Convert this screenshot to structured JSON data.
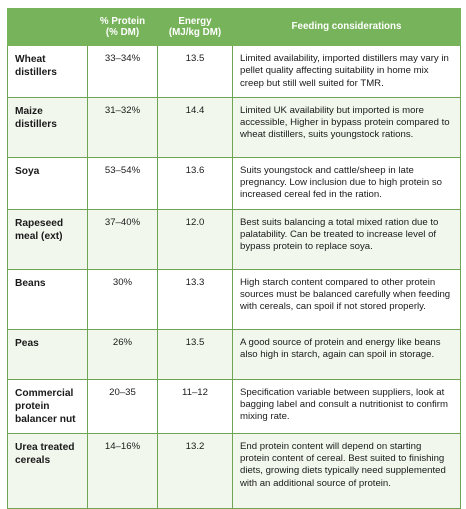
{
  "table": {
    "header": [
      "",
      "% Protein (% DM)",
      "Energy (MJ/kg DM)",
      "Feeding considerations"
    ],
    "rows": [
      [
        "Wheat distillers",
        "33–34%",
        "13.5",
        "Limited availability, imported distillers may vary in pellet quality affecting suitability in home mix creep but still well suited for TMR."
      ],
      [
        "Maize distillers",
        "31–32%",
        "14.4",
        "Limited UK availability but imported is more accessible, Higher in bypass protein compared to wheat distillers, suits youngstock rations."
      ],
      [
        "Soya",
        "53–54%",
        "13.6",
        "Suits youngstock and cattle/sheep in late pregnancy. Low inclusion due to high protein so increased cereal fed in the ration."
      ],
      [
        "Rapeseed meal (ext)",
        "37–40%",
        "12.0",
        "Best suits balancing a total mixed ration due to palatability. Can be treated to increase level of bypass protein to replace soya."
      ],
      [
        "Beans",
        "30%",
        "13.3",
        "High starch content compared to other protein sources must be balanced carefully when feeding with cereals, can spoil if not stored properly."
      ],
      [
        "Peas",
        "26%",
        "13.5",
        "A good source of protein and energy like beans also high in starch, again can spoil in storage."
      ],
      [
        "Commercial protein balancer nut",
        "20–35",
        "11–12",
        "Specification variable between suppliers, look at bagging label and consult a nutritionist to confirm mixing rate."
      ],
      [
        "Urea treated cereals",
        "14–16%",
        "13.2",
        "End protein content will depend on starting protein content of cereal. Best suited to finishing diets, growing diets typically need supplemented with an additional source of protein."
      ]
    ]
  }
}
